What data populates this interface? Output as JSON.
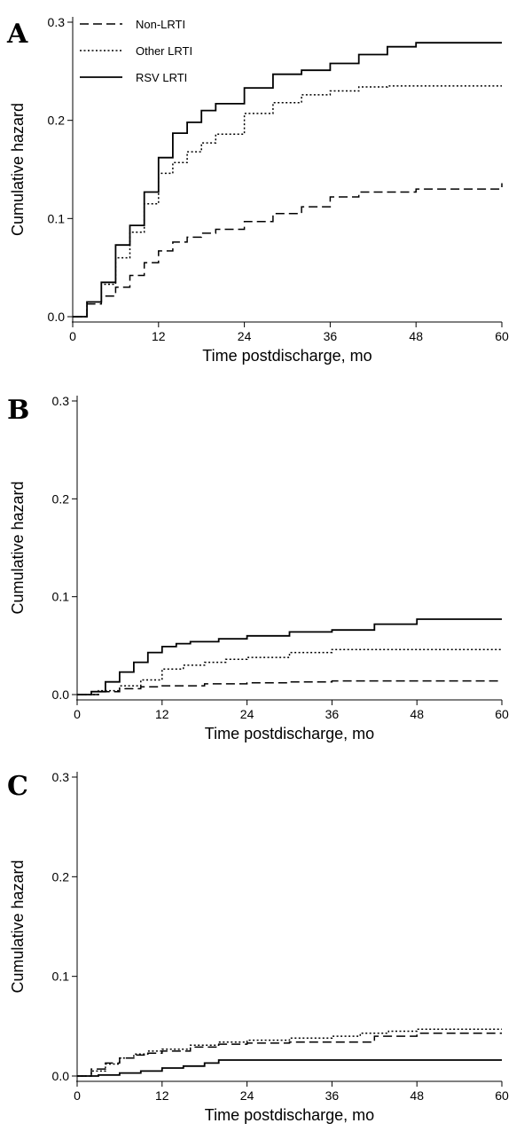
{
  "chart_data": [
    {
      "panel": "A",
      "type": "line",
      "xlabel": "Time postdischarge, mo",
      "ylabel": "Cumulative hazard",
      "xlim": [
        0,
        60
      ],
      "ylim": [
        0,
        0.3
      ],
      "xticks": [
        "0",
        "12",
        "24",
        "36",
        "48",
        "60"
      ],
      "yticks": [
        "0.0",
        "0.1",
        "0.2",
        "0.3"
      ],
      "legend": {
        "placement": "top-left",
        "entries": [
          "Non-LRTI",
          "Other LRTI",
          "RSV LRTI"
        ]
      },
      "series": [
        {
          "name": "Non-LRTI",
          "style": "dashed",
          "x": [
            0,
            2,
            4,
            6,
            8,
            10,
            12,
            14,
            16,
            18,
            20,
            24,
            28,
            32,
            36,
            40,
            48,
            60
          ],
          "y": [
            0,
            0.013,
            0.021,
            0.03,
            0.042,
            0.055,
            0.067,
            0.076,
            0.081,
            0.085,
            0.089,
            0.097,
            0.105,
            0.112,
            0.122,
            0.127,
            0.13,
            0.136
          ]
        },
        {
          "name": "Other LRTI",
          "style": "dotted",
          "x": [
            0,
            2,
            4,
            6,
            8,
            10,
            12,
            14,
            16,
            18,
            20,
            24,
            28,
            32,
            36,
            40,
            44,
            60
          ],
          "y": [
            0,
            0.015,
            0.033,
            0.06,
            0.086,
            0.115,
            0.146,
            0.157,
            0.168,
            0.177,
            0.186,
            0.207,
            0.218,
            0.226,
            0.23,
            0.234,
            0.235,
            0.235
          ]
        },
        {
          "name": "RSV LRTI",
          "style": "solid",
          "x": [
            0,
            2,
            4,
            6,
            8,
            10,
            12,
            14,
            16,
            18,
            20,
            24,
            28,
            32,
            36,
            40,
            44,
            48,
            60
          ],
          "y": [
            0,
            0.015,
            0.035,
            0.073,
            0.093,
            0.127,
            0.162,
            0.187,
            0.198,
            0.21,
            0.217,
            0.233,
            0.247,
            0.251,
            0.258,
            0.267,
            0.275,
            0.279,
            0.279
          ]
        }
      ]
    },
    {
      "panel": "B",
      "type": "line",
      "xlabel": "Time postdischarge, mo",
      "ylabel": "Cumulative hazard",
      "xlim": [
        0,
        60
      ],
      "ylim": [
        0,
        0.3
      ],
      "xticks": [
        "0",
        "12",
        "24",
        "36",
        "48",
        "60"
      ],
      "yticks": [
        "0.0",
        "0.1",
        "0.2",
        "0.3"
      ],
      "series": [
        {
          "name": "Non-LRTI",
          "style": "dashed",
          "x": [
            0,
            3,
            6,
            9,
            12,
            18,
            24,
            30,
            36,
            48,
            60
          ],
          "y": [
            0,
            0.003,
            0.006,
            0.008,
            0.009,
            0.011,
            0.012,
            0.013,
            0.014,
            0.014,
            0.014
          ]
        },
        {
          "name": "Other LRTI",
          "style": "dotted",
          "x": [
            0,
            3,
            6,
            9,
            12,
            15,
            18,
            21,
            24,
            30,
            36,
            42,
            60
          ],
          "y": [
            0,
            0.004,
            0.009,
            0.015,
            0.026,
            0.03,
            0.033,
            0.036,
            0.038,
            0.043,
            0.046,
            0.046,
            0.046
          ]
        },
        {
          "name": "RSV LRTI",
          "style": "solid",
          "x": [
            0,
            2,
            4,
            6,
            8,
            10,
            12,
            14,
            16,
            20,
            24,
            30,
            36,
            42,
            48,
            60
          ],
          "y": [
            0,
            0.003,
            0.013,
            0.023,
            0.033,
            0.043,
            0.049,
            0.052,
            0.054,
            0.057,
            0.06,
            0.064,
            0.066,
            0.072,
            0.077,
            0.077
          ]
        }
      ]
    },
    {
      "panel": "C",
      "type": "line",
      "xlabel": "Time postdischarge, mo",
      "ylabel": "Cumulative hazard",
      "xlim": [
        0,
        60
      ],
      "ylim": [
        0,
        0.3
      ],
      "xticks": [
        "0",
        "12",
        "24",
        "36",
        "48",
        "60"
      ],
      "yticks": [
        "0.0",
        "0.1",
        "0.2",
        "0.3"
      ],
      "series": [
        {
          "name": "Non-LRTI",
          "style": "dashed",
          "x": [
            0,
            2,
            4,
            6,
            8,
            10,
            12,
            16,
            20,
            24,
            30,
            36,
            42,
            48,
            60
          ],
          "y": [
            0,
            0.007,
            0.013,
            0.018,
            0.021,
            0.023,
            0.025,
            0.029,
            0.032,
            0.033,
            0.034,
            0.034,
            0.04,
            0.043,
            0.043
          ]
        },
        {
          "name": "Other LRTI",
          "style": "dotted",
          "x": [
            0,
            2,
            4,
            6,
            8,
            10,
            12,
            16,
            20,
            24,
            30,
            36,
            40,
            44,
            48,
            60
          ],
          "y": [
            0,
            0.005,
            0.012,
            0.018,
            0.022,
            0.025,
            0.027,
            0.031,
            0.034,
            0.036,
            0.038,
            0.04,
            0.043,
            0.045,
            0.047,
            0.047
          ]
        },
        {
          "name": "RSV LRTI",
          "style": "solid",
          "x": [
            0,
            3,
            6,
            9,
            12,
            15,
            18,
            20,
            24,
            36,
            48,
            60
          ],
          "y": [
            0,
            0.001,
            0.003,
            0.005,
            0.008,
            0.01,
            0.013,
            0.016,
            0.016,
            0.016,
            0.016,
            0.016
          ]
        }
      ]
    }
  ]
}
